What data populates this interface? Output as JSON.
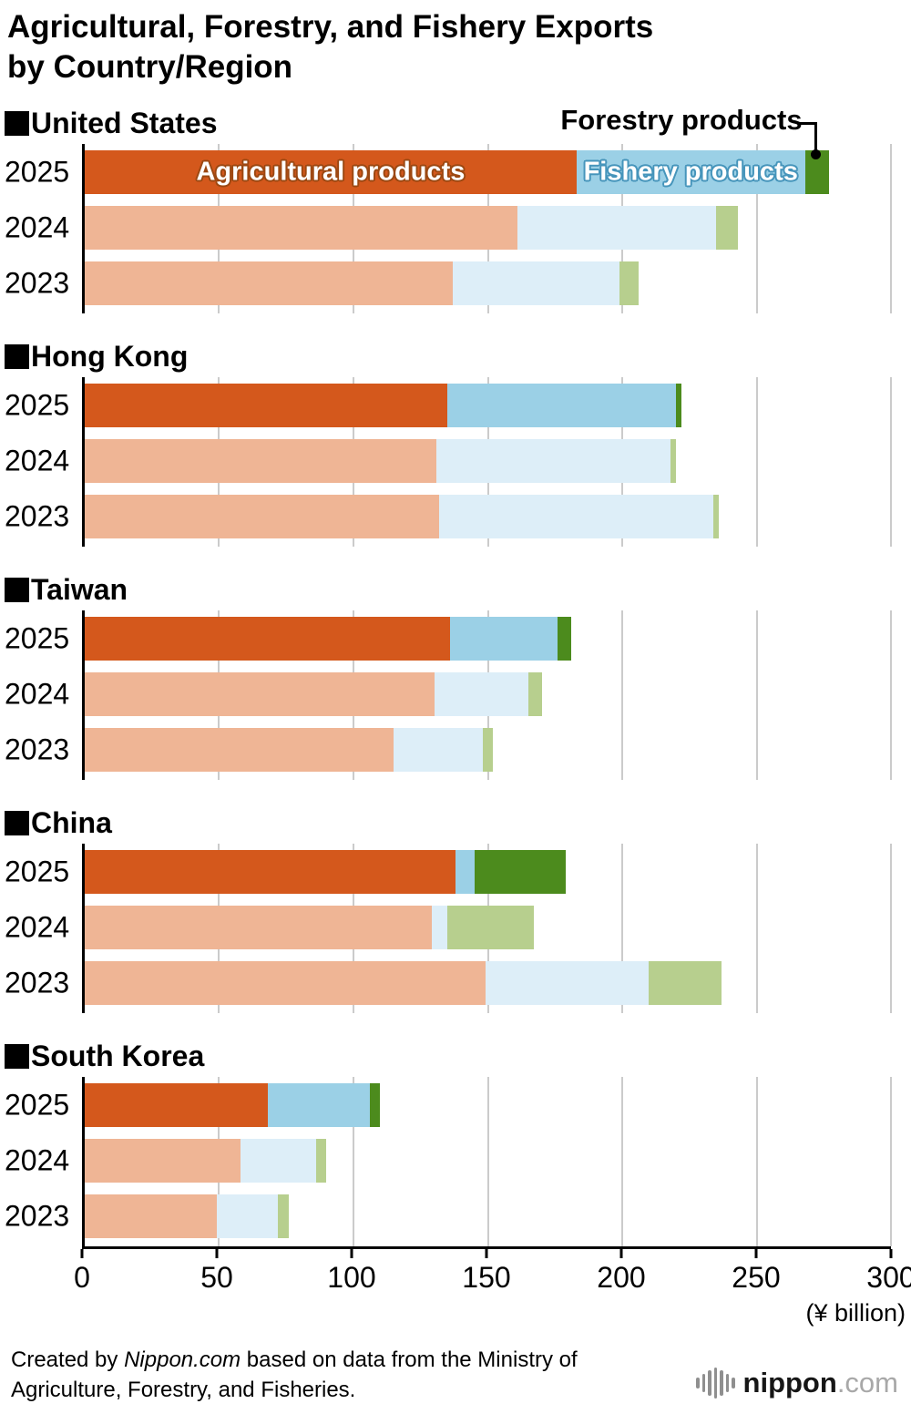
{
  "title": {
    "line1": "Agricultural, Forestry, and Fishery Exports",
    "line2": "by Country/Region"
  },
  "axis": {
    "unit_label": "(¥ billion)"
  },
  "annotations": {
    "agricultural": "Agricultural products",
    "fishery": "Fishery products",
    "forestry": "Forestry products"
  },
  "footer": {
    "credit_prefix": "Created by ",
    "credit_source": "Nippon.com",
    "credit_suffix": " based on data from the Ministry of Agriculture, Forestry, and Fisheries.",
    "logo_name": "nippon",
    "logo_tld": ".com"
  },
  "chart_data": {
    "type": "bar",
    "orientation": "horizontal",
    "stacked": true,
    "title": "Agricultural, Forestry, and Fishery Exports by Country/Region",
    "xlabel": "(¥ billion)",
    "xlim": [
      0,
      300
    ],
    "x_ticks": [
      0,
      50,
      100,
      150,
      200,
      250,
      300
    ],
    "grid": true,
    "series": [
      "Agricultural products",
      "Fishery products",
      "Forestry products"
    ],
    "colors": {
      "current": {
        "agricultural": "#d4581c",
        "fishery": "#9bd0e6",
        "forestry": "#4c8b1d"
      },
      "previous": {
        "agricultural": "#efb595",
        "fishery": "#ddeef8",
        "forestry": "#b7cf8e"
      }
    },
    "groups": [
      {
        "region": "United States",
        "rows": [
          {
            "year": "2025",
            "values": {
              "agricultural": 183,
              "fishery": 85,
              "forestry": 9
            }
          },
          {
            "year": "2024",
            "values": {
              "agricultural": 161,
              "fishery": 74,
              "forestry": 8
            }
          },
          {
            "year": "2023",
            "values": {
              "agricultural": 137,
              "fishery": 62,
              "forestry": 7
            }
          }
        ]
      },
      {
        "region": "Hong Kong",
        "rows": [
          {
            "year": "2025",
            "values": {
              "agricultural": 135,
              "fishery": 85,
              "forestry": 2
            }
          },
          {
            "year": "2024",
            "values": {
              "agricultural": 131,
              "fishery": 87,
              "forestry": 2
            }
          },
          {
            "year": "2023",
            "values": {
              "agricultural": 132,
              "fishery": 102,
              "forestry": 2
            }
          }
        ]
      },
      {
        "region": "Taiwan",
        "rows": [
          {
            "year": "2025",
            "values": {
              "agricultural": 136,
              "fishery": 40,
              "forestry": 5
            }
          },
          {
            "year": "2024",
            "values": {
              "agricultural": 130,
              "fishery": 35,
              "forestry": 5
            }
          },
          {
            "year": "2023",
            "values": {
              "agricultural": 115,
              "fishery": 33,
              "forestry": 4
            }
          }
        ]
      },
      {
        "region": "China",
        "rows": [
          {
            "year": "2025",
            "values": {
              "agricultural": 138,
              "fishery": 7,
              "forestry": 34
            }
          },
          {
            "year": "2024",
            "values": {
              "agricultural": 129,
              "fishery": 6,
              "forestry": 32
            }
          },
          {
            "year": "2023",
            "values": {
              "agricultural": 149,
              "fishery": 61,
              "forestry": 27
            }
          }
        ]
      },
      {
        "region": "South Korea",
        "rows": [
          {
            "year": "2025",
            "values": {
              "agricultural": 68,
              "fishery": 38,
              "forestry": 4
            }
          },
          {
            "year": "2024",
            "values": {
              "agricultural": 58,
              "fishery": 28,
              "forestry": 4
            }
          },
          {
            "year": "2023",
            "values": {
              "agricultural": 49,
              "fishery": 23,
              "forestry": 4
            }
          }
        ]
      }
    ]
  }
}
